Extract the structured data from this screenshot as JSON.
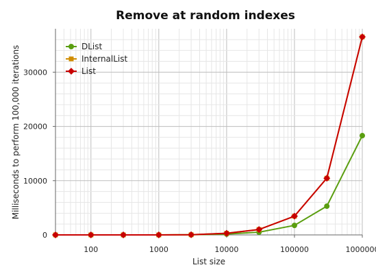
{
  "chart_data": {
    "type": "line",
    "title": "Remove at random indexes",
    "xlabel": "List size",
    "ylabel": "Milliseconds to perform 100,000 iterations",
    "x_scale": "log",
    "xlim": [
      30,
      1000000
    ],
    "ylim": [
      0,
      38000
    ],
    "x_ticks": [
      100,
      1000,
      10000,
      100000,
      1000000
    ],
    "x_tick_labels": [
      "100",
      "1000",
      "10000",
      "100000",
      "1000000"
    ],
    "y_ticks": [
      0,
      10000,
      20000,
      30000
    ],
    "y_tick_labels": [
      "0",
      "10000",
      "20000",
      "30000"
    ],
    "grid": true,
    "legend_position": "top-left",
    "x": [
      30,
      100,
      300,
      1000,
      3000,
      10000,
      30000,
      100000,
      300000,
      1000000
    ],
    "series": [
      {
        "name": "DList",
        "color": "#5a9e10",
        "marker": "circle",
        "values": [
          0,
          0,
          0,
          0,
          20,
          150,
          500,
          1750,
          5300,
          18300
        ]
      },
      {
        "name": "InternalList",
        "color": "#d08c00",
        "marker": "square",
        "values": [
          0,
          0,
          0,
          0,
          30,
          300,
          1000,
          3450,
          10450,
          36500
        ]
      },
      {
        "name": "List",
        "color": "#c80000",
        "marker": "diamond",
        "values": [
          0,
          0,
          0,
          0,
          30,
          300,
          1000,
          3450,
          10450,
          36500
        ]
      }
    ]
  }
}
